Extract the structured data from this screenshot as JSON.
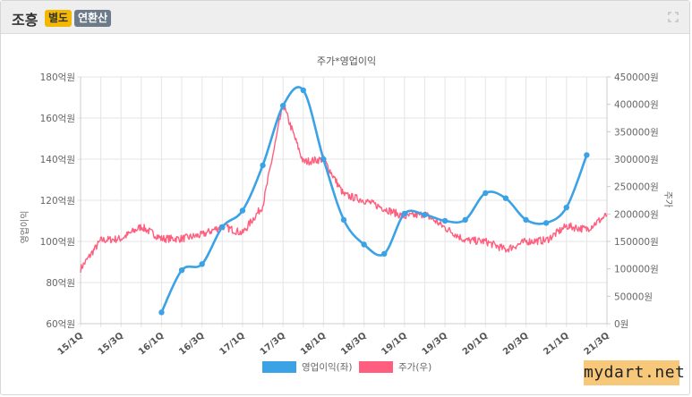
{
  "header": {
    "company": "조흥",
    "badge_separate": "별도",
    "badge_consolidated": "연환산",
    "expand_icon": "expand-icon"
  },
  "watermark": "mydart.net",
  "colors": {
    "profit": "#3ba2e6",
    "price": "#ff5f7e",
    "grid": "#e6e6e6"
  },
  "chart_data": {
    "type": "line",
    "title": "주가*영업이익",
    "left_axis_label": "영업이익",
    "right_axis_label": "주가",
    "left_ylim": [
      60,
      180
    ],
    "left_ticks": [
      "60억원",
      "80억원",
      "100억원",
      "120억원",
      "140억원",
      "160억원",
      "180억원"
    ],
    "right_ylim": [
      0,
      450000
    ],
    "right_ticks": [
      "0원",
      "50000원",
      "100000원",
      "150000원",
      "200000원",
      "250000원",
      "300000원",
      "350000원",
      "400000원",
      "450000원"
    ],
    "x_ticks": [
      "15/1Q",
      "15/3Q",
      "16/1Q",
      "16/3Q",
      "17/1Q",
      "17/3Q",
      "18/1Q",
      "18/3Q",
      "19/1Q",
      "19/3Q",
      "20/1Q",
      "20/3Q",
      "21/1Q",
      "21/3Q"
    ],
    "grid": true,
    "legend_position": "bottom",
    "series": [
      {
        "name": "영업이익(좌)",
        "axis": "left",
        "x": [
          "16/1Q",
          "16/2Q",
          "16/3Q",
          "16/4Q",
          "17/1Q",
          "17/2Q",
          "17/3Q",
          "17/4Q",
          "18/1Q",
          "18/2Q",
          "18/3Q",
          "18/4Q",
          "19/1Q",
          "19/2Q",
          "19/3Q",
          "19/4Q",
          "20/1Q",
          "20/2Q",
          "20/3Q",
          "20/4Q",
          "21/1Q",
          "21/2Q"
        ],
        "values": [
          65.5,
          86,
          89,
          107,
          115,
          137,
          166,
          173.5,
          140,
          110.5,
          98.5,
          94,
          113.5,
          113,
          110,
          110.5,
          123.5,
          121,
          110.5,
          109,
          116.5,
          142
        ]
      },
      {
        "name": "주가(우)",
        "axis": "right",
        "x": [
          "15/1Q",
          "15/2Q",
          "15/3Q",
          "15/4Q",
          "16/1Q",
          "16/2Q",
          "16/3Q",
          "16/4Q",
          "17/1Q",
          "17/2Q",
          "17/3Q",
          "17/4Q",
          "18/1Q",
          "18/2Q",
          "18/3Q",
          "18/4Q",
          "19/1Q",
          "19/2Q",
          "19/3Q",
          "19/4Q",
          "20/1Q",
          "20/2Q",
          "20/3Q",
          "20/4Q",
          "21/1Q",
          "21/2Q",
          "21/3Q"
        ],
        "values": [
          100000,
          152000,
          155000,
          177000,
          155000,
          155000,
          162000,
          178000,
          165000,
          215000,
          400000,
          295000,
          300000,
          235000,
          225000,
          210000,
          195000,
          200000,
          175000,
          152000,
          150000,
          135000,
          150000,
          152000,
          178000,
          172000,
          198000
        ]
      }
    ]
  }
}
